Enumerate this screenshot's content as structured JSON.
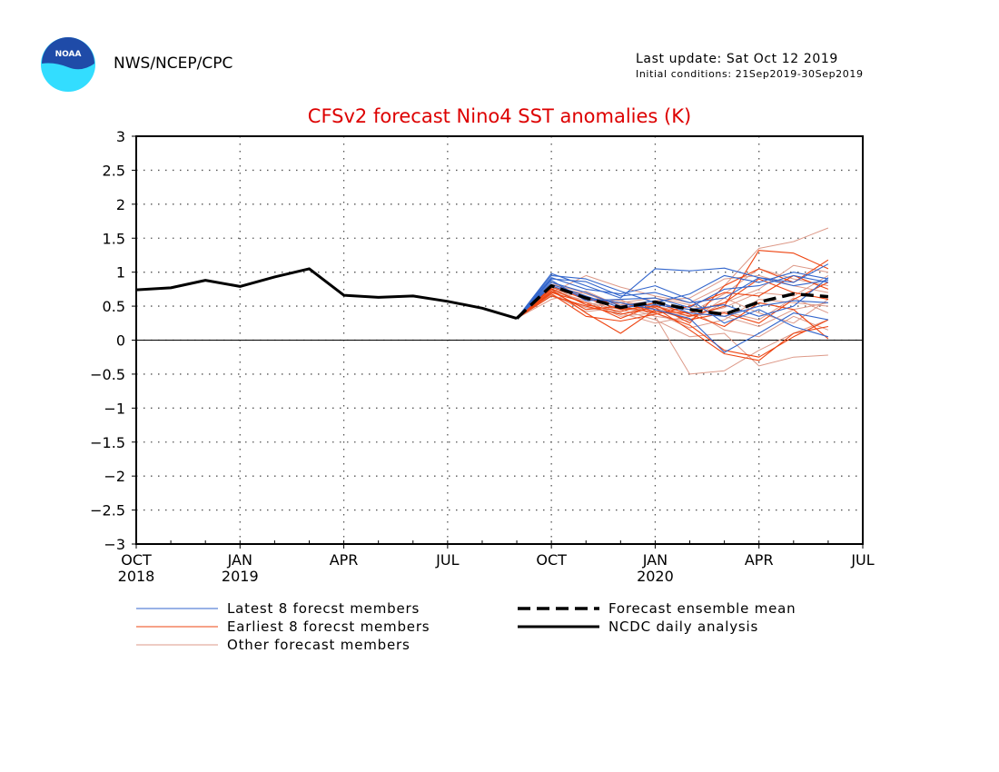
{
  "header": {
    "org": "NWS/NCEP/CPC",
    "last_update": "Last update: Sat Oct 12 2019",
    "initial_conditions": "Initial conditions: 21Sep2019-30Sep2019",
    "logo_text": "NOAA"
  },
  "colors": {
    "title": "#dd0000",
    "latest": "#3366cc",
    "earliest": "#ee4411",
    "other": "#dd9988",
    "analysis": "#000000",
    "logo_blue": "#1f4ba8",
    "logo_cyan": "#33ddff"
  },
  "chart_data": {
    "type": "line",
    "title": "CFSv2 forecast Nino4 SST anomalies (K)",
    "xlabel": "",
    "ylabel": "",
    "ylim": [
      -3,
      3
    ],
    "yticks": [
      3,
      2.5,
      2,
      1.5,
      1,
      0.5,
      0,
      -0.5,
      -1,
      -1.5,
      -2,
      -2.5,
      -3
    ],
    "ytick_labels": [
      "3",
      "2.5",
      "2",
      "1.5",
      "1",
      "0.5",
      "0",
      "−0.5",
      "−1",
      "−1.5",
      "−2",
      "−2.5",
      "−3"
    ],
    "xticks": [
      {
        "month": 0,
        "label": "OCT",
        "year": "2018"
      },
      {
        "month": 3,
        "label": "JAN",
        "year": "2019"
      },
      {
        "month": 6,
        "label": "APR",
        "year": ""
      },
      {
        "month": 9,
        "label": "JUL",
        "year": ""
      },
      {
        "month": 12,
        "label": "OCT",
        "year": ""
      },
      {
        "month": 15,
        "label": "JAN",
        "year": "2020"
      },
      {
        "month": 18,
        "label": "APR",
        "year": ""
      },
      {
        "month": 21,
        "label": "JUL",
        "year": ""
      }
    ],
    "xlim": [
      0,
      21
    ],
    "grid": true,
    "zero_line": true,
    "legend_position": "bottom",
    "legend": {
      "latest": "Latest 8 forecst members",
      "earliest": "Earliest 8 forecst members",
      "other": "Other forecast members",
      "mean": "Forecast ensemble mean",
      "analysis": "NCDC daily analysis"
    },
    "forecast_x": [
      12,
      13,
      14,
      15,
      16,
      17,
      18,
      19,
      20
    ],
    "analysis": {
      "name": "NCDC daily analysis",
      "x": [
        0,
        1,
        2,
        3,
        4,
        5,
        6,
        7,
        8,
        9,
        10,
        11
      ],
      "y": [
        0.74,
        0.77,
        0.88,
        0.79,
        0.93,
        1.05,
        0.66,
        0.63,
        0.65,
        0.57,
        0.47,
        0.32
      ]
    },
    "ensemble_mean": {
      "name": "Forecast ensemble mean",
      "x": [
        11,
        12,
        13,
        14,
        15,
        16,
        17,
        18,
        19,
        20
      ],
      "y": [
        0.32,
        0.8,
        0.62,
        0.48,
        0.56,
        0.45,
        0.38,
        0.56,
        0.68,
        0.64
      ]
    },
    "latest_members": [
      [
        0.98,
        0.8,
        0.62,
        1.05,
        1.02,
        1.06,
        0.92,
        0.85,
        1.12
      ],
      [
        0.95,
        0.9,
        0.72,
        0.55,
        0.68,
        0.95,
        0.85,
        1.0,
        0.9
      ],
      [
        0.9,
        0.86,
        0.65,
        0.7,
        0.55,
        0.62,
        0.92,
        0.8,
        0.88
      ],
      [
        0.85,
        0.7,
        0.5,
        0.58,
        0.4,
        0.35,
        0.5,
        0.58,
        0.55
      ],
      [
        0.8,
        0.62,
        0.55,
        0.45,
        0.32,
        -0.18,
        0.1,
        0.4,
        0.3
      ],
      [
        0.88,
        0.58,
        0.6,
        0.62,
        0.48,
        0.75,
        0.8,
        0.95,
        0.85
      ],
      [
        0.82,
        0.65,
        0.48,
        0.52,
        0.45,
        0.52,
        0.35,
        0.5,
        0.92
      ],
      [
        0.92,
        0.75,
        0.68,
        0.8,
        0.6,
        0.25,
        0.45,
        0.2,
        0.05
      ]
    ],
    "earliest_members": [
      [
        0.8,
        0.62,
        0.45,
        0.5,
        0.35,
        0.5,
        1.32,
        1.28,
        1.05
      ],
      [
        0.7,
        0.55,
        0.32,
        0.52,
        0.25,
        0.8,
        1.05,
        0.85,
        1.18
      ],
      [
        0.75,
        0.4,
        0.1,
        0.45,
        0.3,
        0.4,
        0.25,
        0.6,
        0.85
      ],
      [
        0.65,
        0.5,
        0.38,
        0.48,
        0.15,
        -0.2,
        -0.3,
        0.1,
        0.2
      ],
      [
        0.78,
        0.6,
        0.55,
        0.42,
        0.4,
        0.55,
        0.9,
        0.7,
        0.6
      ],
      [
        0.72,
        0.45,
        0.5,
        0.4,
        0.22,
        -0.15,
        -0.25,
        0.05,
        0.3
      ],
      [
        0.68,
        0.35,
        0.28,
        0.38,
        0.5,
        0.7,
        0.65,
        0.95,
        0.75
      ],
      [
        0.76,
        0.52,
        0.42,
        0.55,
        0.38,
        0.2,
        0.55,
        0.45,
        0.02
      ]
    ],
    "other_members": [
      [
        0.7,
        0.95,
        0.78,
        0.65,
        0.55,
        0.8,
        1.35,
        1.45,
        1.65
      ],
      [
        0.6,
        0.72,
        0.5,
        0.35,
        -0.5,
        -0.45,
        -0.15,
        0.1,
        0.3
      ],
      [
        0.75,
        0.55,
        0.45,
        0.3,
        0.05,
        0.1,
        -0.38,
        -0.25,
        -0.22
      ],
      [
        0.85,
        0.62,
        0.58,
        0.48,
        0.3,
        0.55,
        0.75,
        1.1,
        1.0
      ],
      [
        0.65,
        0.48,
        0.4,
        0.25,
        0.35,
        0.42,
        0.3,
        0.62,
        0.4
      ],
      [
        0.78,
        0.68,
        0.52,
        0.58,
        0.62,
        0.9,
        0.95,
        0.8,
        0.7
      ],
      [
        0.72,
        0.58,
        0.35,
        0.4,
        0.18,
        0.3,
        0.6,
        0.55,
        0.5
      ],
      [
        0.68,
        0.42,
        0.48,
        0.55,
        0.45,
        0.15,
        0.05,
        0.35,
        0.15
      ],
      [
        0.8,
        0.52,
        0.6,
        0.35,
        0.28,
        0.62,
        0.4,
        0.25,
        0.6
      ],
      [
        0.74,
        0.64,
        0.38,
        0.5,
        0.4,
        0.68,
        1.05,
        0.9,
        0.8
      ],
      [
        0.66,
        0.5,
        0.55,
        0.62,
        0.52,
        0.35,
        0.2,
        0.45,
        0.55
      ],
      [
        0.82,
        0.7,
        0.46,
        0.42,
        0.36,
        0.48,
        0.7,
        0.65,
        0.95
      ]
    ]
  }
}
